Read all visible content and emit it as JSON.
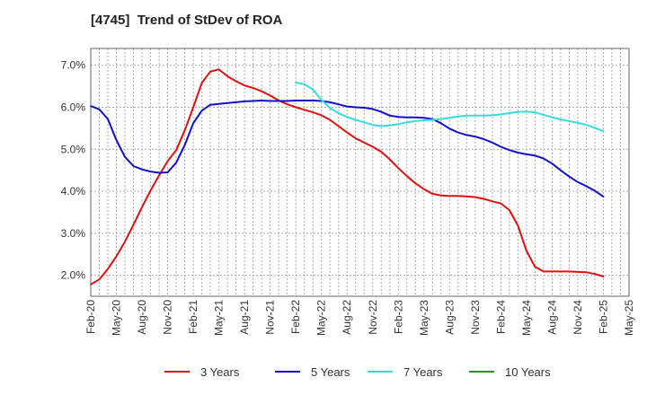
{
  "chart_data": {
    "type": "line",
    "title": "[4745]  Trend of StDev of ROA",
    "xlabel": "",
    "ylabel": "",
    "x_tick_labels": [
      "Feb-20",
      "May-20",
      "Aug-20",
      "Nov-20",
      "Feb-21",
      "May-21",
      "Aug-21",
      "Nov-21",
      "Feb-22",
      "May-22",
      "Aug-22",
      "Nov-22",
      "Feb-23",
      "May-23",
      "Aug-23",
      "Nov-23",
      "Feb-24",
      "May-24",
      "Aug-24",
      "Nov-24",
      "Feb-25",
      "May-25"
    ],
    "y_tick_labels": [
      "2.0%",
      "3.0%",
      "4.0%",
      "5.0%",
      "6.0%",
      "7.0%"
    ],
    "y_ticks": [
      2.0,
      3.0,
      4.0,
      5.0,
      6.0,
      7.0
    ],
    "ylim": [
      1.5,
      7.4
    ],
    "x_range_months": [
      "Feb-20",
      "May-25"
    ],
    "grid": true,
    "legend_position": "bottom",
    "series": [
      {
        "name": "3 Years",
        "color": "#dd1111",
        "x": [
          "Feb-20",
          "Mar-20",
          "Apr-20",
          "May-20",
          "Jun-20",
          "Jul-20",
          "Aug-20",
          "Sep-20",
          "Oct-20",
          "Nov-20",
          "Dec-20",
          "Jan-21",
          "Feb-21",
          "Mar-21",
          "Apr-21",
          "May-21",
          "Jun-21",
          "Jul-21",
          "Aug-21",
          "Sep-21",
          "Oct-21",
          "Nov-21",
          "Dec-21",
          "Jan-22",
          "Feb-22",
          "Mar-22",
          "Apr-22",
          "May-22",
          "Jun-22",
          "Jul-22",
          "Aug-22",
          "Sep-22",
          "Oct-22",
          "Nov-22",
          "Dec-22",
          "Jan-23",
          "Feb-23",
          "Mar-23",
          "Apr-23",
          "May-23",
          "Jun-23",
          "Jul-23",
          "Aug-23",
          "Sep-23",
          "Oct-23",
          "Nov-23",
          "Dec-23",
          "Jan-24",
          "Feb-24",
          "Mar-24",
          "Apr-24",
          "May-24",
          "Jun-24",
          "Jul-24",
          "Aug-24",
          "Sep-24",
          "Oct-24",
          "Nov-24",
          "Dec-24",
          "Jan-25",
          "Feb-25"
        ],
        "values": [
          1.78,
          1.9,
          2.15,
          2.45,
          2.8,
          3.2,
          3.62,
          4.02,
          4.38,
          4.72,
          4.98,
          5.45,
          6.0,
          6.58,
          6.85,
          6.9,
          6.74,
          6.62,
          6.52,
          6.46,
          6.38,
          6.28,
          6.16,
          6.07,
          6.0,
          5.94,
          5.88,
          5.81,
          5.7,
          5.55,
          5.4,
          5.26,
          5.16,
          5.06,
          4.94,
          4.76,
          4.55,
          4.36,
          4.19,
          4.05,
          3.94,
          3.9,
          3.89,
          3.89,
          3.88,
          3.86,
          3.82,
          3.76,
          3.71,
          3.55,
          3.18,
          2.58,
          2.2,
          2.09,
          2.09,
          2.09,
          2.09,
          2.08,
          2.07,
          2.03,
          1.97
        ]
      },
      {
        "name": "5 Years",
        "color": "#1111cc",
        "x": [
          "Feb-20",
          "Mar-20",
          "Apr-20",
          "May-20",
          "Jun-20",
          "Jul-20",
          "Aug-20",
          "Sep-20",
          "Oct-20",
          "Nov-20",
          "Dec-20",
          "Jan-21",
          "Feb-21",
          "Mar-21",
          "Apr-21",
          "May-21",
          "Jun-21",
          "Jul-21",
          "Aug-21",
          "Sep-21",
          "Oct-21",
          "Nov-21",
          "Dec-21",
          "Jan-22",
          "Feb-22",
          "Mar-22",
          "Apr-22",
          "May-22",
          "Jun-22",
          "Jul-22",
          "Aug-22",
          "Sep-22",
          "Oct-22",
          "Nov-22",
          "Dec-22",
          "Jan-23",
          "Feb-23",
          "Mar-23",
          "Apr-23",
          "May-23",
          "Jun-23",
          "Jul-23",
          "Aug-23",
          "Sep-23",
          "Oct-23",
          "Nov-23",
          "Dec-23",
          "Jan-24",
          "Feb-24",
          "Mar-24",
          "Apr-24",
          "May-24",
          "Jun-24",
          "Jul-24",
          "Aug-24",
          "Sep-24",
          "Oct-24",
          "Nov-24",
          "Dec-24",
          "Jan-25",
          "Feb-25"
        ],
        "values": [
          6.03,
          5.95,
          5.72,
          5.22,
          4.82,
          4.6,
          4.52,
          4.47,
          4.44,
          4.45,
          4.68,
          5.1,
          5.62,
          5.92,
          6.06,
          6.08,
          6.1,
          6.12,
          6.14,
          6.15,
          6.16,
          6.15,
          6.15,
          6.15,
          6.16,
          6.16,
          6.16,
          6.15,
          6.12,
          6.07,
          6.02,
          6.0,
          5.99,
          5.96,
          5.89,
          5.8,
          5.77,
          5.76,
          5.76,
          5.75,
          5.72,
          5.62,
          5.49,
          5.4,
          5.34,
          5.3,
          5.24,
          5.16,
          5.06,
          4.98,
          4.92,
          4.88,
          4.85,
          4.78,
          4.66,
          4.5,
          4.35,
          4.22,
          4.12,
          4.01,
          3.87
        ]
      },
      {
        "name": "7 Years",
        "color": "#33dddd",
        "x": [
          "Feb-22",
          "Mar-22",
          "Apr-22",
          "May-22",
          "Jun-22",
          "Jul-22",
          "Aug-22",
          "Sep-22",
          "Oct-22",
          "Nov-22",
          "Dec-22",
          "Jan-23",
          "Feb-23",
          "Mar-23",
          "Apr-23",
          "May-23",
          "Jun-23",
          "Jul-23",
          "Aug-23",
          "Sep-23",
          "Oct-23",
          "Nov-23",
          "Dec-23",
          "Jan-24",
          "Feb-24",
          "Mar-24",
          "Apr-24",
          "May-24",
          "Jun-24",
          "Jul-24",
          "Aug-24",
          "Sep-24",
          "Oct-24",
          "Nov-24",
          "Dec-24",
          "Jan-25",
          "Feb-25"
        ],
        "values": [
          6.59,
          6.55,
          6.42,
          6.18,
          5.98,
          5.86,
          5.77,
          5.7,
          5.64,
          5.58,
          5.55,
          5.57,
          5.6,
          5.64,
          5.67,
          5.69,
          5.7,
          5.72,
          5.75,
          5.78,
          5.8,
          5.8,
          5.8,
          5.81,
          5.83,
          5.86,
          5.89,
          5.9,
          5.88,
          5.82,
          5.76,
          5.71,
          5.67,
          5.63,
          5.58,
          5.51,
          5.43
        ]
      },
      {
        "name": "10 Years",
        "color": "#229922",
        "x": [],
        "values": []
      }
    ]
  }
}
